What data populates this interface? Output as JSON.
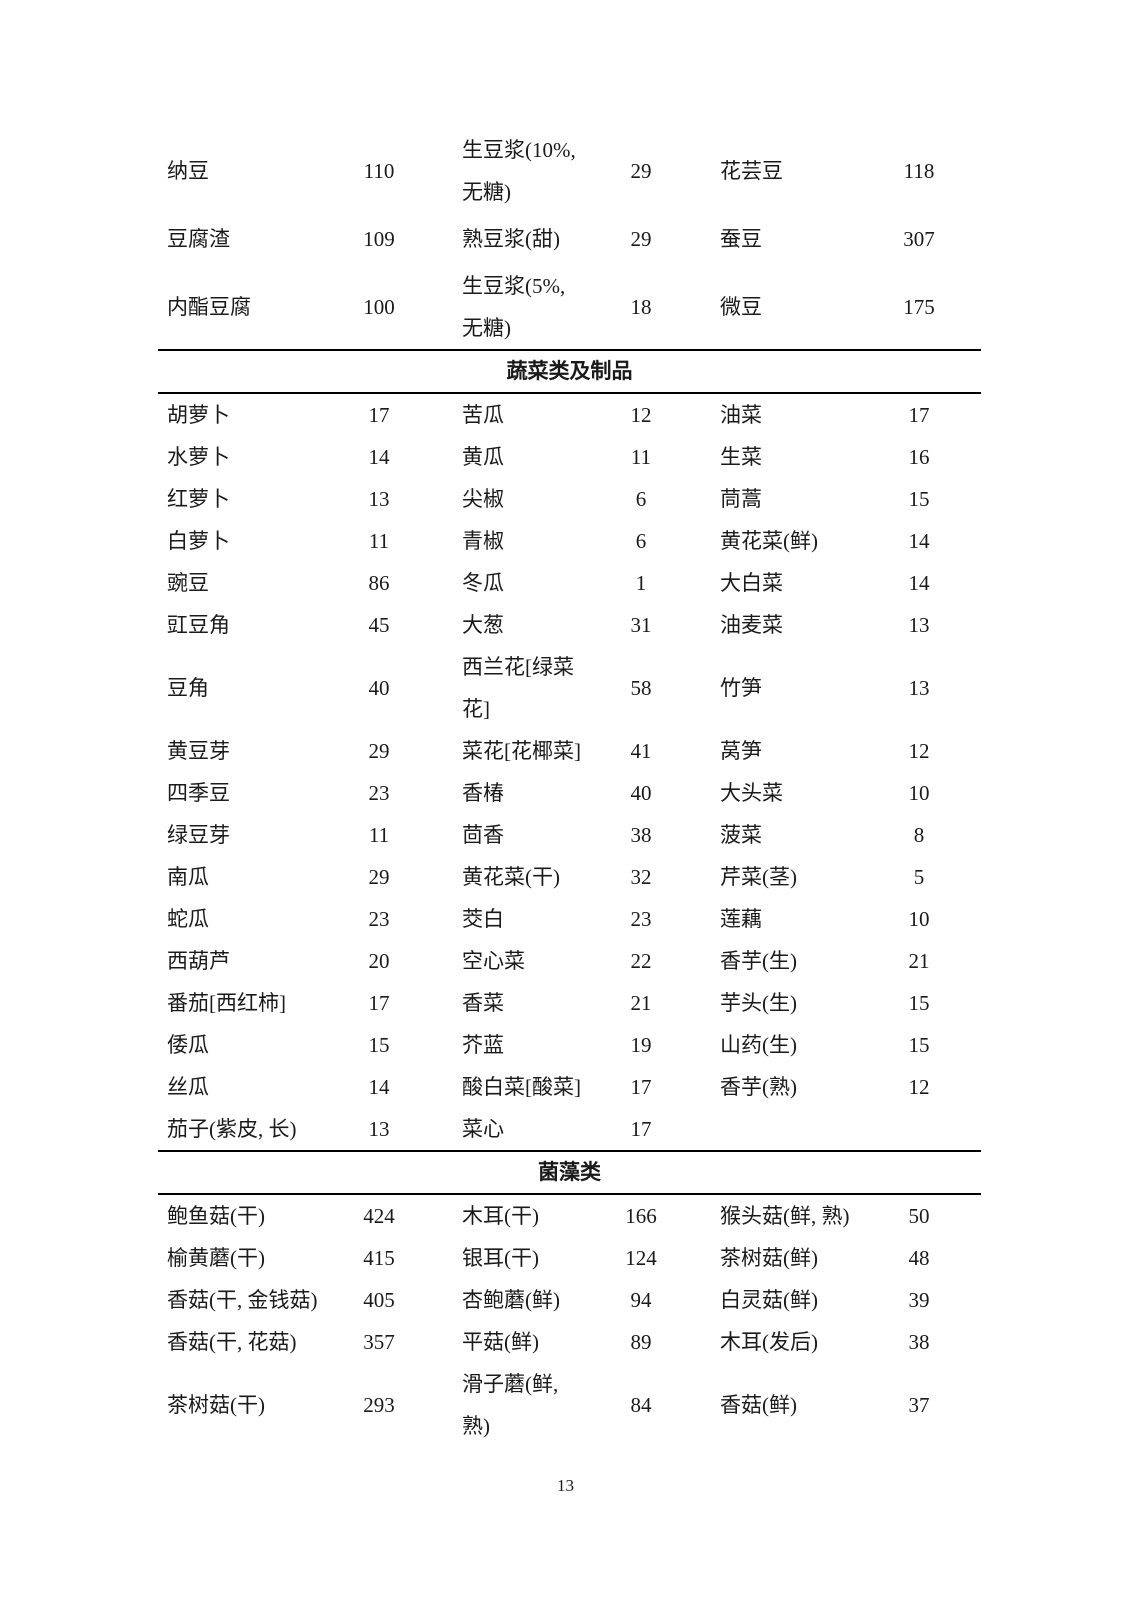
{
  "page": {
    "number": "13"
  },
  "table": {
    "sections": [
      {
        "header": "",
        "rows": [
          [
            {
              "n": "纳豆",
              "v": "110"
            },
            {
              "n": "生豆浆(10%, 无糖)",
              "v": "29"
            },
            {
              "n": "花芸豆",
              "v": "118"
            }
          ],
          [
            {
              "n": "豆腐渣",
              "v": "109"
            },
            {
              "n": "熟豆浆(甜)",
              "v": "29"
            },
            {
              "n": "蚕豆",
              "v": "307"
            }
          ],
          [
            {
              "n": "内酯豆腐",
              "v": "100"
            },
            {
              "n": "生豆浆(5%, 无糖)",
              "v": "18"
            },
            {
              "n": "微豆",
              "v": "175"
            }
          ]
        ]
      },
      {
        "header": "蔬菜类及制品",
        "rows": [
          [
            {
              "n": "胡萝卜",
              "v": "17"
            },
            {
              "n": "苦瓜",
              "v": "12"
            },
            {
              "n": "油菜",
              "v": "17"
            }
          ],
          [
            {
              "n": "水萝卜",
              "v": "14"
            },
            {
              "n": "黄瓜",
              "v": "11"
            },
            {
              "n": "生菜",
              "v": "16"
            }
          ],
          [
            {
              "n": "红萝卜",
              "v": "13"
            },
            {
              "n": "尖椒",
              "v": "6"
            },
            {
              "n": "茼蒿",
              "v": "15"
            }
          ],
          [
            {
              "n": "白萝卜",
              "v": "11"
            },
            {
              "n": "青椒",
              "v": "6"
            },
            {
              "n": "黄花菜(鲜)",
              "v": "14"
            }
          ],
          [
            {
              "n": "豌豆",
              "v": "86"
            },
            {
              "n": "冬瓜",
              "v": "1"
            },
            {
              "n": "大白菜",
              "v": "14"
            }
          ],
          [
            {
              "n": "豇豆角",
              "v": "45"
            },
            {
              "n": "大葱",
              "v": "31"
            },
            {
              "n": "油麦菜",
              "v": "13"
            }
          ],
          [
            {
              "n": "豆角",
              "v": "40"
            },
            {
              "n": "西兰花[绿菜花]",
              "v": "58"
            },
            {
              "n": "竹笋",
              "v": "13"
            }
          ],
          [
            {
              "n": "黄豆芽",
              "v": "29"
            },
            {
              "n": "菜花[花椰菜]",
              "v": "41"
            },
            {
              "n": "莴笋",
              "v": "12"
            }
          ],
          [
            {
              "n": "四季豆",
              "v": "23"
            },
            {
              "n": "香椿",
              "v": "40"
            },
            {
              "n": "大头菜",
              "v": "10"
            }
          ],
          [
            {
              "n": "绿豆芽",
              "v": "11"
            },
            {
              "n": "茴香",
              "v": "38"
            },
            {
              "n": "菠菜",
              "v": "8"
            }
          ],
          [
            {
              "n": "南瓜",
              "v": "29"
            },
            {
              "n": "黄花菜(干)",
              "v": "32"
            },
            {
              "n": "芹菜(茎)",
              "v": "5"
            }
          ],
          [
            {
              "n": "蛇瓜",
              "v": "23"
            },
            {
              "n": "茭白",
              "v": "23"
            },
            {
              "n": "莲藕",
              "v": "10"
            }
          ],
          [
            {
              "n": "西葫芦",
              "v": "20"
            },
            {
              "n": "空心菜",
              "v": "22"
            },
            {
              "n": "香芋(生)",
              "v": "21"
            }
          ],
          [
            {
              "n": "番茄[西红柿]",
              "v": "17"
            },
            {
              "n": "香菜",
              "v": "21"
            },
            {
              "n": "芋头(生)",
              "v": "15"
            }
          ],
          [
            {
              "n": "倭瓜",
              "v": "15"
            },
            {
              "n": "芥蓝",
              "v": "19"
            },
            {
              "n": "山药(生)",
              "v": "15"
            }
          ],
          [
            {
              "n": "丝瓜",
              "v": "14"
            },
            {
              "n": "酸白菜[酸菜]",
              "v": "17"
            },
            {
              "n": "香芋(熟)",
              "v": "12"
            }
          ],
          [
            {
              "n": "茄子(紫皮, 长)",
              "v": "13"
            },
            {
              "n": "菜心",
              "v": "17"
            },
            {
              "n": "",
              "v": ""
            }
          ]
        ]
      },
      {
        "header": "菌藻类",
        "rows": [
          [
            {
              "n": "鲍鱼菇(干)",
              "v": "424"
            },
            {
              "n": "木耳(干)",
              "v": "166"
            },
            {
              "n": "猴头菇(鲜, 熟)",
              "v": "50"
            }
          ],
          [
            {
              "n": "榆黄蘑(干)",
              "v": "415"
            },
            {
              "n": "银耳(干)",
              "v": "124"
            },
            {
              "n": "茶树菇(鲜)",
              "v": "48"
            }
          ],
          [
            {
              "n": "香菇(干, 金钱菇)",
              "v": "405"
            },
            {
              "n": "杏鲍蘑(鲜)",
              "v": "94"
            },
            {
              "n": "白灵菇(鲜)",
              "v": "39"
            }
          ],
          [
            {
              "n": "香菇(干, 花菇)",
              "v": "357"
            },
            {
              "n": "平菇(鲜)",
              "v": "89"
            },
            {
              "n": "木耳(发后)",
              "v": "38"
            }
          ],
          [
            {
              "n": "茶树菇(干)",
              "v": "293"
            },
            {
              "n": "滑子蘑(鲜, 熟)",
              "v": "84"
            },
            {
              "n": "香菇(鲜)",
              "v": "37"
            }
          ]
        ]
      }
    ]
  }
}
